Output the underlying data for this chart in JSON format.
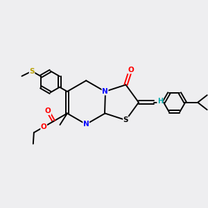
{
  "background_color": "#eeeef0",
  "bond_color": "#000000",
  "atom_colors": {
    "N": "#0000ff",
    "O": "#ff0000",
    "S_yellow": "#b8a000",
    "S_ring": "#000000",
    "H": "#00aaaa",
    "C": "#000000"
  },
  "figsize": [
    3.0,
    3.0
  ],
  "dpi": 100,
  "lw": 1.4,
  "fs": 7.5
}
